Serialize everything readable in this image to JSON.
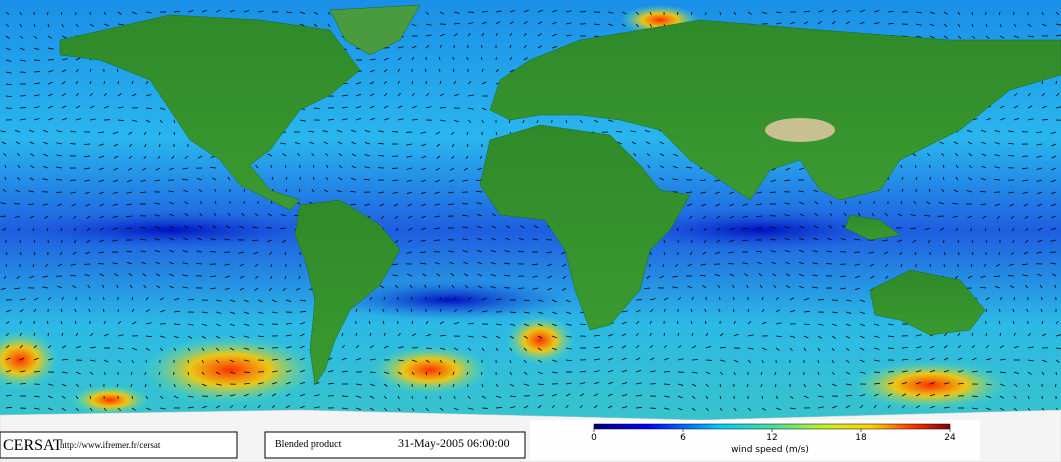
{
  "footer": {
    "logo": "CERSAT",
    "url": "http://www.ifremer.fr/cersat",
    "product": "Blended product",
    "datetime": "31-May-2005 06:00:00"
  },
  "colorbar": {
    "label": "wind speed (m/s)",
    "lim": [
      0,
      24
    ],
    "ticks": [
      0,
      6,
      12,
      18,
      24
    ]
  }
}
